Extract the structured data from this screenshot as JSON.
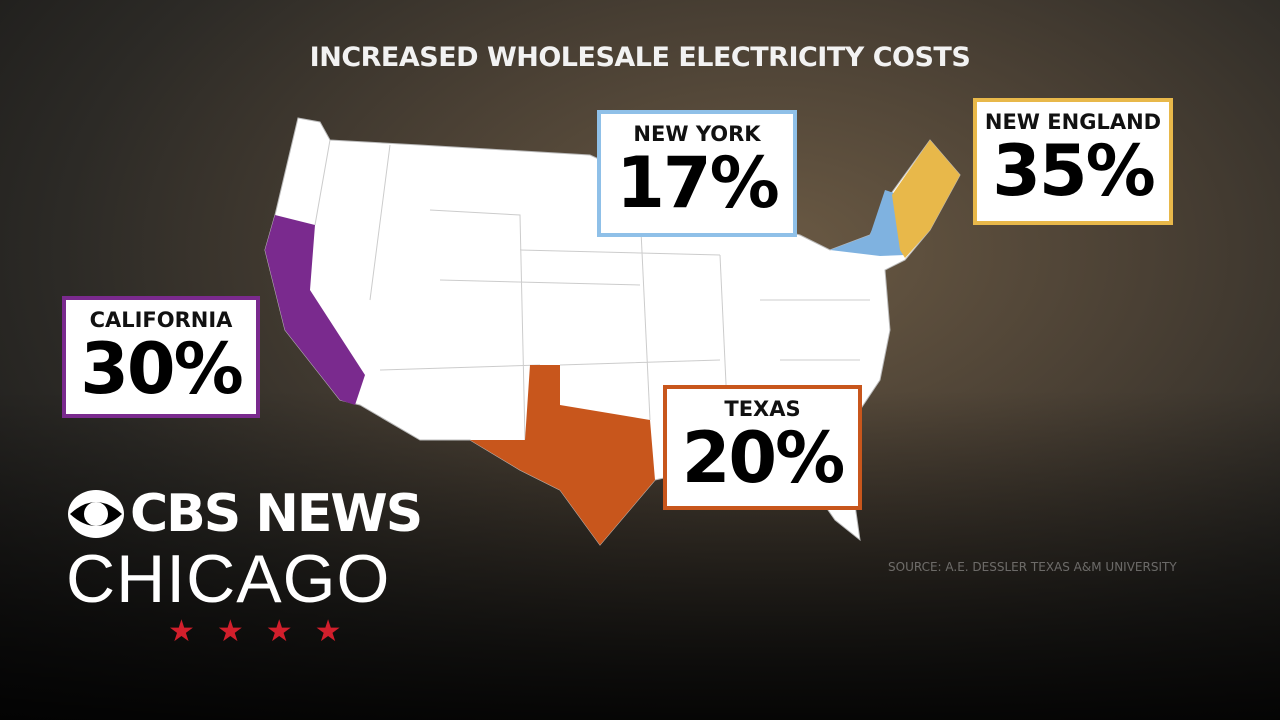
{
  "title": "INCREASED WHOLESALE ELECTRICITY COSTS",
  "regions": [
    {
      "name": "NEW YORK",
      "label": "17%"
    },
    {
      "name": "NEW ENGLAND",
      "label": "35%"
    },
    {
      "name": "CALIFORNIA",
      "label": "30%"
    },
    {
      "name": "TEXAS",
      "label": "20%"
    }
  ],
  "source": "SOURCE: A.E. DESSLER TEXAS A&M UNIVERSITY",
  "logo": {
    "network": "CBS NEWS",
    "city": "CHICAGO"
  }
}
